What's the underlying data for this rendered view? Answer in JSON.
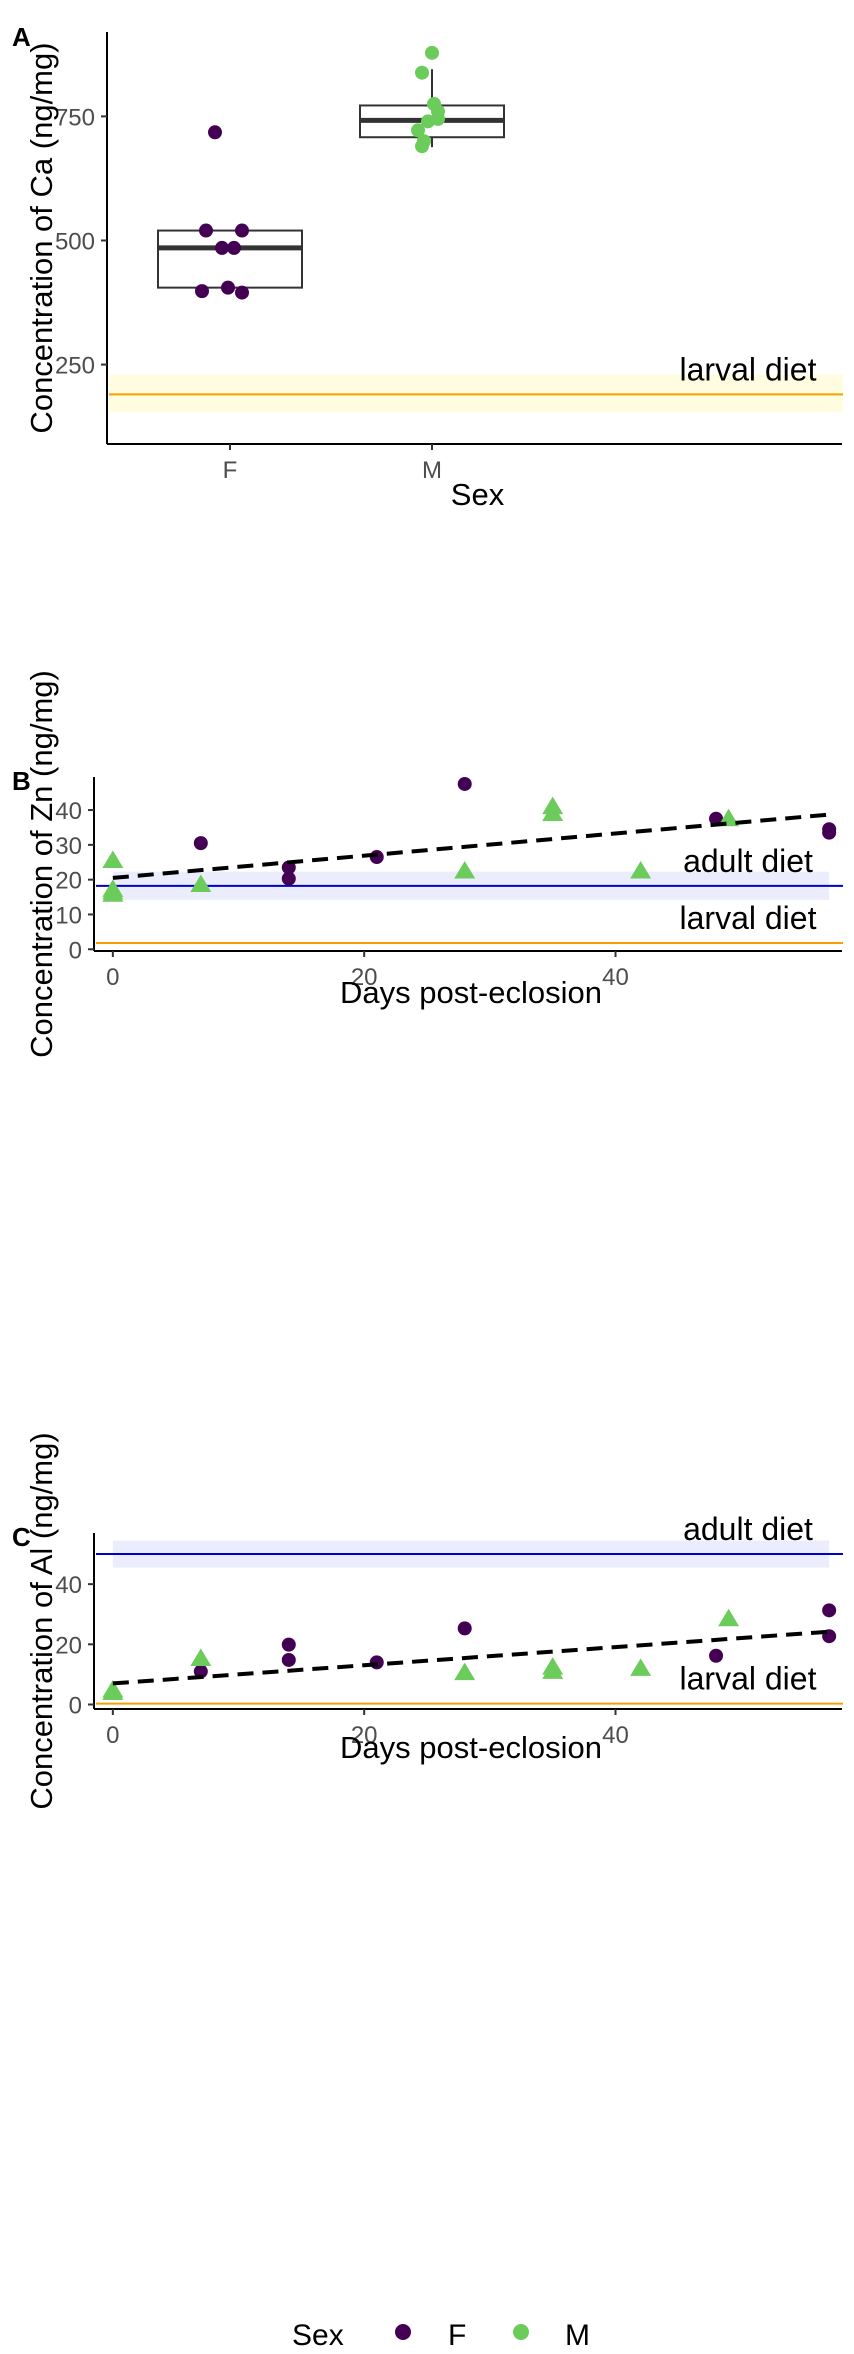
{
  "colors": {
    "female": "#440154",
    "male": "#6ccc5b",
    "larval_line": "#f5a000",
    "adult_line": "#0000cc",
    "larval_band": "#fffce0",
    "adult_band": "#ecedfc",
    "axis": "#000000",
    "box": "#333333"
  },
  "chart_data": [
    {
      "panel": "A",
      "type": "box",
      "xlabel": "Sex",
      "ylabel": "Concentration of Ca (ng/mg)",
      "categories": [
        "F",
        "M"
      ],
      "ylim": [
        90,
        920
      ],
      "yticks": [
        250,
        500,
        750
      ],
      "boxes": [
        {
          "category": "F",
          "q1": 405,
          "median": 485,
          "q3": 520,
          "whisker_low": 395,
          "whisker_high": 520
        },
        {
          "category": "M",
          "q1": 708,
          "median": 742,
          "q3": 772,
          "whisker_low": 688,
          "whisker_high": 845
        }
      ],
      "points": {
        "F": [
          718,
          520,
          520,
          485,
          485,
          405,
          398,
          395
        ],
        "M": [
          878,
          838,
          775,
          760,
          745,
          740,
          722,
          700,
          690
        ]
      },
      "reference_lines": [
        {
          "label": "larval diet",
          "value": 190,
          "band": [
            155,
            230
          ],
          "kind": "larval"
        }
      ]
    },
    {
      "panel": "B",
      "type": "scatter",
      "xlabel": "Days post-eclosion",
      "ylabel": "Concentration of Zn (ng/mg)",
      "xlim": [
        -1.5,
        58.5
      ],
      "ylim": [
        -0.5,
        49.5
      ],
      "xticks": [
        0,
        20,
        40
      ],
      "yticks": [
        0,
        10,
        20,
        30,
        40
      ],
      "series": [
        {
          "name": "F",
          "marker": "circle",
          "x": [
            7,
            14,
            14,
            21,
            28,
            48,
            57,
            57
          ],
          "y": [
            30.5,
            23.5,
            20.3,
            26.5,
            47.5,
            37.5,
            34.5,
            33.5
          ]
        },
        {
          "name": "M",
          "marker": "triangle",
          "x": [
            0,
            0,
            0,
            0,
            7,
            28,
            35,
            35,
            42,
            49
          ],
          "y": [
            25.5,
            17.2,
            16.5,
            15.8,
            18.6,
            22.5,
            41,
            39,
            22.5,
            37.5
          ]
        }
      ],
      "trend": {
        "x0": 0,
        "y0": 20.5,
        "x1": 57,
        "y1": 38.7
      },
      "reference_lines": [
        {
          "label": "adult diet",
          "value": 18.2,
          "band": [
            14.2,
            22.3
          ],
          "kind": "adult"
        },
        {
          "label": "larval diet",
          "value": 1.8,
          "kind": "larval"
        }
      ]
    },
    {
      "panel": "C",
      "type": "scatter",
      "xlabel": "Days post-eclosion",
      "ylabel": "Concentration of Al (ng/mg)",
      "xlim": [
        -1.5,
        58.5
      ],
      "ylim": [
        -1.5,
        57
      ],
      "xticks": [
        0,
        20,
        40
      ],
      "yticks": [
        0,
        20,
        40
      ],
      "series": [
        {
          "name": "F",
          "marker": "circle",
          "x": [
            7,
            14,
            14,
            21,
            28,
            48,
            57,
            57
          ],
          "y": [
            11,
            19.9,
            14.8,
            14,
            25.3,
            16.2,
            31.3,
            22.7
          ]
        },
        {
          "name": "M",
          "marker": "triangle",
          "x": [
            0,
            0,
            7,
            28,
            35,
            35,
            42,
            49
          ],
          "y": [
            4.8,
            4,
            15.3,
            10.6,
            12.4,
            11,
            12,
            28.5
          ]
        }
      ],
      "trend": {
        "x0": 0,
        "y0": 7,
        "x1": 57,
        "y1": 24.2
      },
      "reference_lines": [
        {
          "label": "adult diet",
          "value": 50,
          "band": [
            45.5,
            54.5
          ],
          "kind": "adult"
        },
        {
          "label": "larval diet",
          "value": 0.3,
          "kind": "larval"
        }
      ]
    }
  ],
  "legend": {
    "title": "Sex",
    "items": [
      {
        "label": "F",
        "marker": "circle"
      },
      {
        "label": "M",
        "marker": "circle"
      }
    ]
  }
}
